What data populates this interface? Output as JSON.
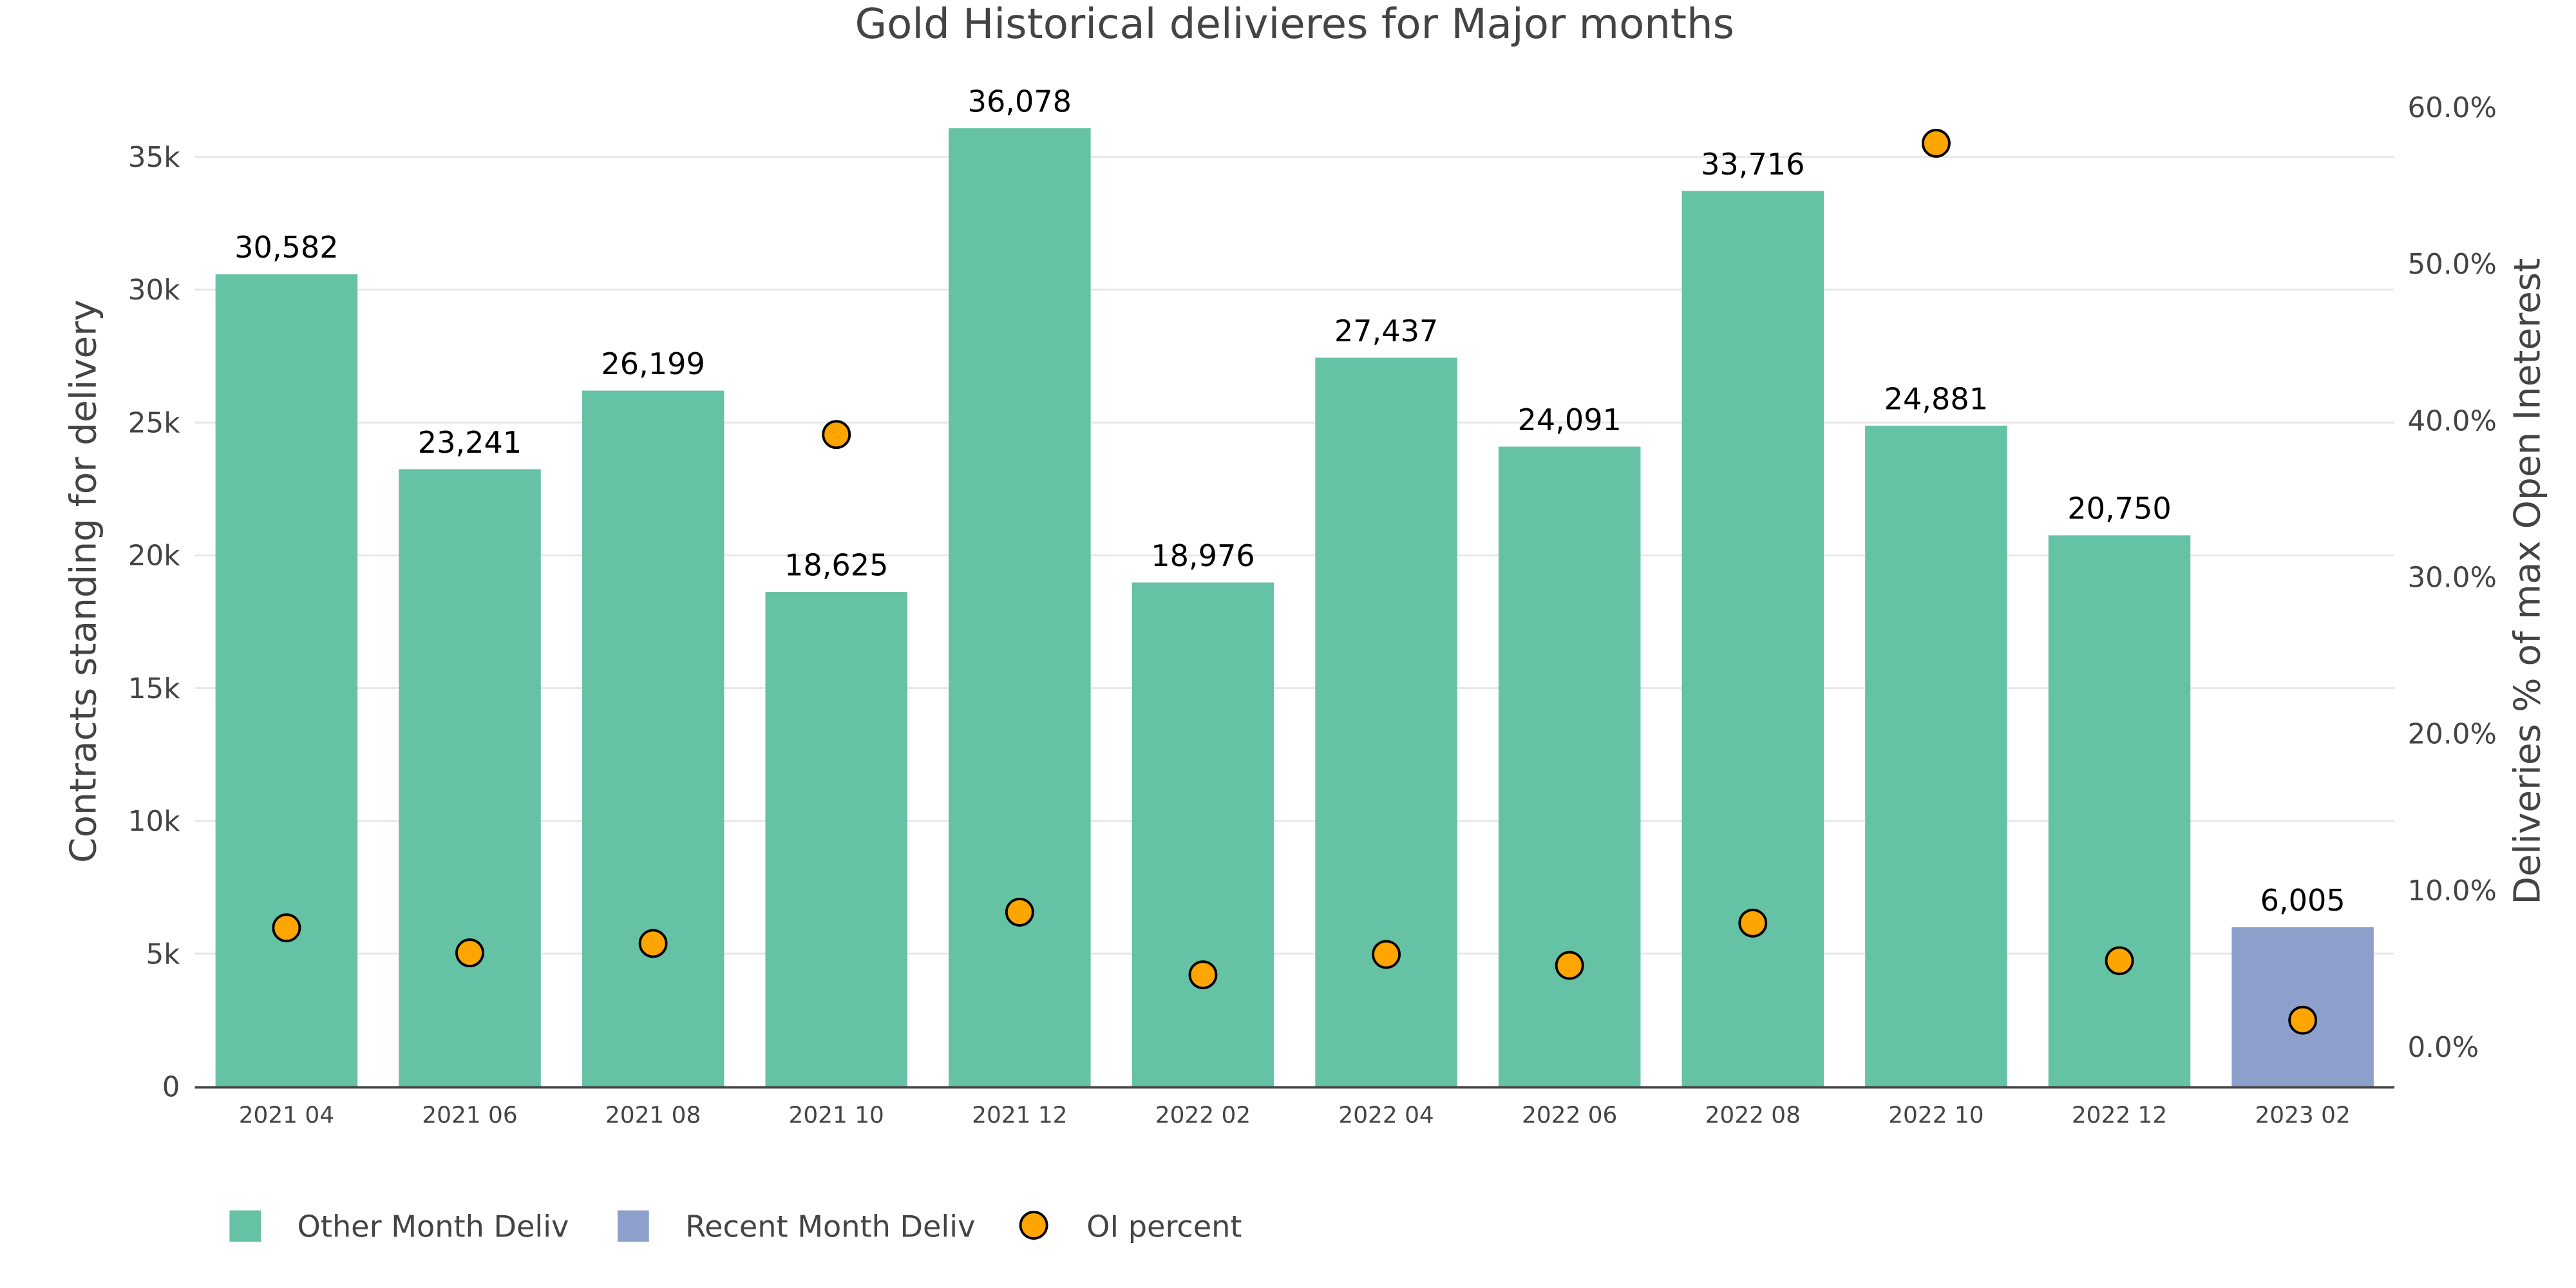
{
  "chart_data": {
    "type": "bar",
    "title": "Gold Historical delivieres for Major months",
    "ylabel": "Contracts standing for delivery",
    "y2label": "Deliveries % of max Open Ineterest",
    "ylim": [
      0,
      38000
    ],
    "y2lim": [
      -2.7,
      64
    ],
    "yticks": [
      0,
      5000,
      10000,
      15000,
      20000,
      25000,
      30000,
      35000
    ],
    "ytick_labels": [
      "0",
      "5k",
      "10k",
      "15k",
      "20k",
      "25k",
      "30k",
      "35k"
    ],
    "y2ticks": [
      0,
      10,
      20,
      30,
      40,
      50,
      60
    ],
    "y2tick_labels": [
      "0.0%",
      "10.0%",
      "20.0%",
      "30.0%",
      "40.0%",
      "50.0%",
      "60.0%"
    ],
    "categories": [
      "2021 04",
      "2021 06",
      "2021 08",
      "2021 10",
      "2021 12",
      "2022 02",
      "2022 04",
      "2022 06",
      "2022 08",
      "2022 10",
      "2022 12",
      "2023 02"
    ],
    "series": [
      {
        "name": "Other Month Deliv",
        "type": "bar",
        "color": "#66c2a5",
        "values": [
          30582,
          23241,
          26199,
          18625,
          36078,
          18976,
          27437,
          24091,
          33716,
          24881,
          20750,
          null
        ]
      },
      {
        "name": "Recent Month Deliv",
        "type": "bar",
        "color": "#8da0cb",
        "values": [
          null,
          null,
          null,
          null,
          null,
          null,
          null,
          null,
          null,
          null,
          null,
          6005
        ]
      },
      {
        "name": "OI percent",
        "type": "scatter",
        "axis": "y2",
        "color": "#ffa500",
        "values": [
          7.5,
          5.9,
          6.5,
          39.0,
          8.5,
          4.5,
          5.8,
          5.1,
          7.8,
          57.6,
          5.4,
          1.6
        ]
      }
    ],
    "data_labels": [
      "30,582",
      "23,241",
      "26,199",
      "18,625",
      "36,078",
      "18,976",
      "27,437",
      "24,091",
      "33,716",
      "24,881",
      "20,750",
      "6,005"
    ],
    "grid": true,
    "legend": "bottom-left"
  }
}
